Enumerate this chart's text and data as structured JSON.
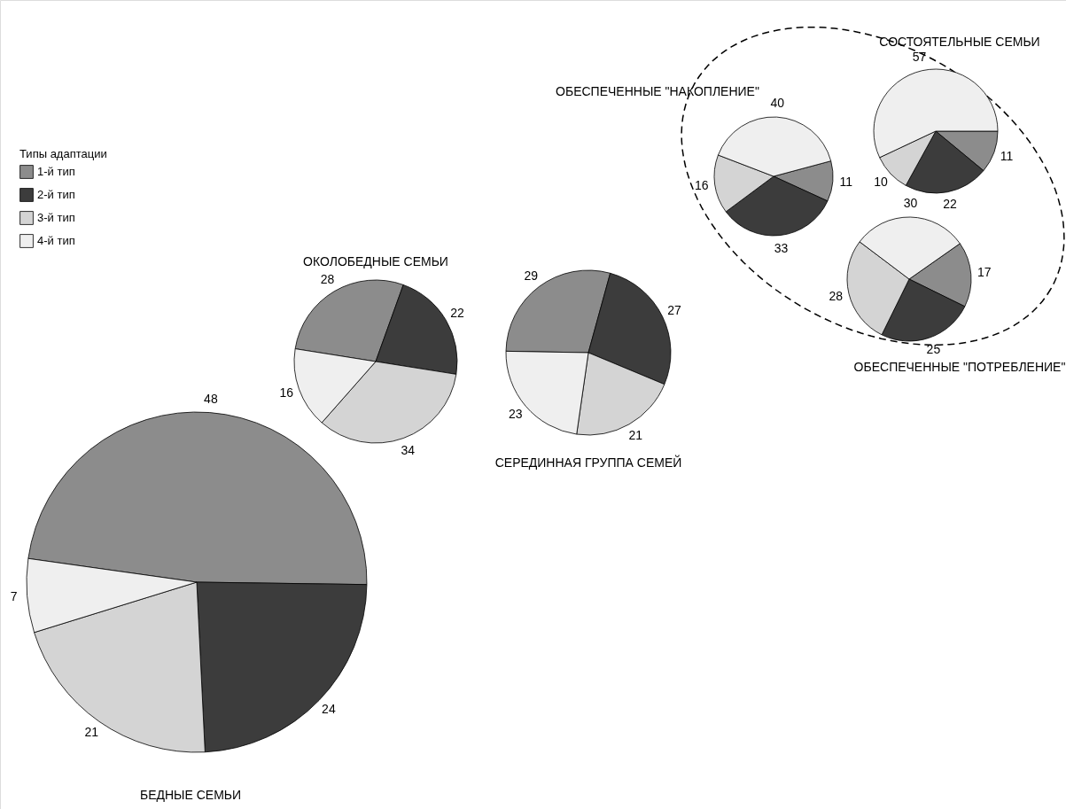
{
  "chart_data": [
    {
      "type": "pie",
      "title": "БЕДНЫЕ СЕМЬИ",
      "legend_title": "Типы адаптации",
      "legend": "left",
      "categories": [
        "1-й тип",
        "2-й тип",
        "3-й тип",
        "4-й тип"
      ],
      "values": [
        48,
        24,
        21,
        7
      ],
      "colors": [
        "#8c8c8c",
        "#3c3c3c",
        "#d4d4d4",
        "#efefef"
      ],
      "data_labels": true
    },
    {
      "type": "pie",
      "title": "ОКОЛОБЕДНЫЕ СЕМЬИ",
      "categories": [
        null,
        null,
        null,
        null
      ],
      "values": [
        28,
        22,
        34,
        16
      ],
      "colors": [
        "#8c8c8c",
        "#3c3c3c",
        "#d4d4d4",
        "#efefef"
      ],
      "data_labels": true
    },
    {
      "type": "pie",
      "title": "СЕРЕДИННАЯ ГРУППА СЕМЕЙ",
      "categories": [
        null,
        null,
        null,
        null
      ],
      "values": [
        29,
        27,
        21,
        23
      ],
      "colors": [
        "#8c8c8c",
        "#3c3c3c",
        "#d4d4d4",
        "#efefef"
      ],
      "data_labels": true
    },
    {
      "type": "pie",
      "title": "ОБЕСПЕЧЕННЫЕ \"НАКОПЛЕНИЕ\"",
      "categories": [
        null,
        null,
        null,
        null
      ],
      "values": [
        11,
        33,
        16,
        40
      ],
      "colors": [
        "#8c8c8c",
        "#3c3c3c",
        "#d4d4d4",
        "#efefef"
      ],
      "data_labels": true
    },
    {
      "type": "pie",
      "title": "СОСТОЯТЕЛЬНЫЕ СЕМЬИ",
      "categories": [
        null,
        null,
        null,
        null
      ],
      "values": [
        11,
        22,
        10,
        57
      ],
      "colors": [
        "#8c8c8c",
        "#3c3c3c",
        "#d4d4d4",
        "#efefef"
      ],
      "data_labels": true
    },
    {
      "type": "pie",
      "title": "ОБЕСПЕЧЕННЫЕ \"ПОТРЕБЛЕНИЕ\"",
      "categories": [
        null,
        null,
        null,
        null
      ],
      "values": [
        17,
        25,
        28,
        30
      ],
      "colors": [
        "#8c8c8c",
        "#3c3c3c",
        "#d4d4d4",
        "#efefef"
      ],
      "data_labels": true
    }
  ]
}
